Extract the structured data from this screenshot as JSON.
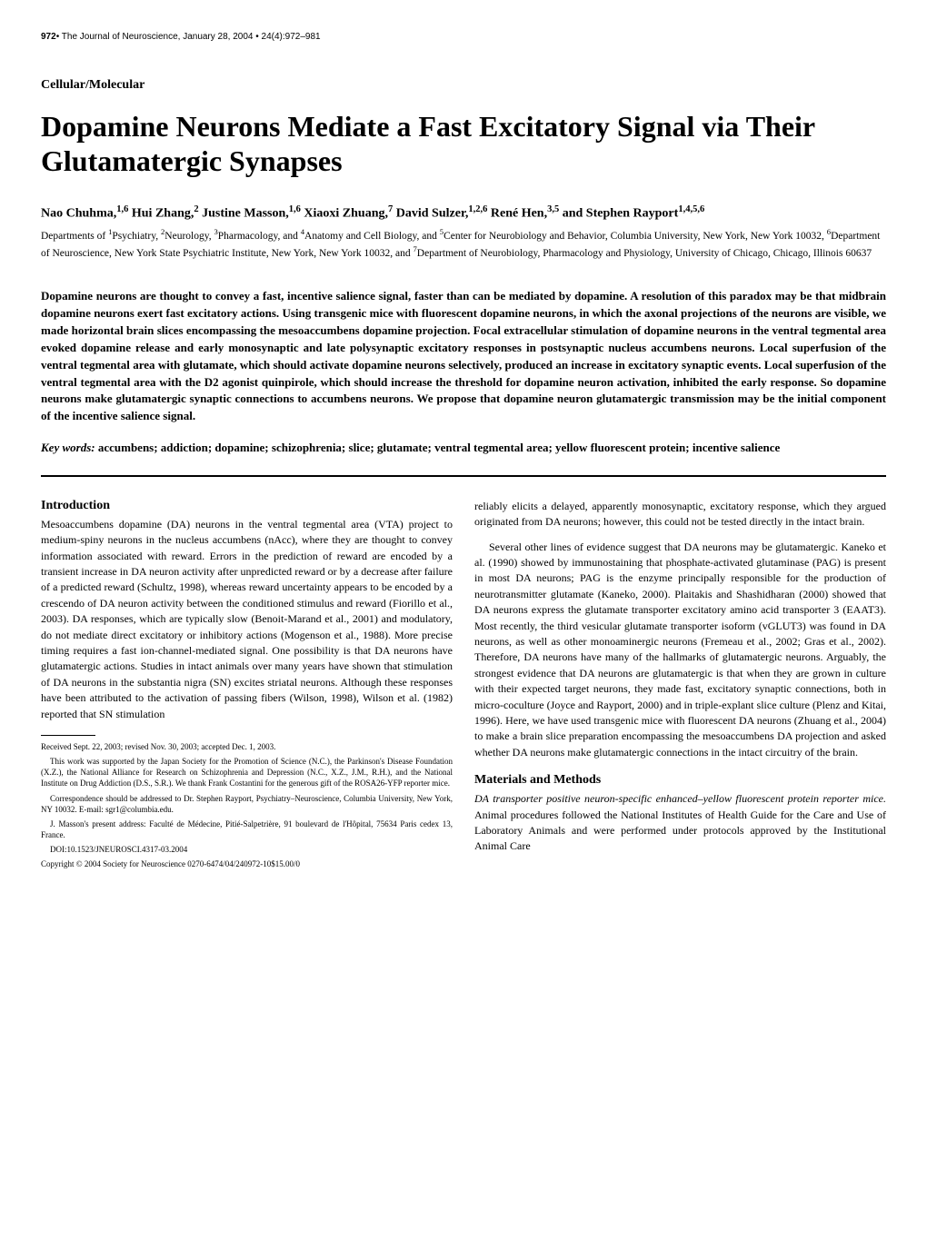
{
  "header": {
    "page_number": "972",
    "journal_info": "• The Journal of Neuroscience, January 28, 2004 • 24(4):972–981"
  },
  "section_label": "Cellular/Molecular",
  "title": "Dopamine Neurons Mediate a Fast Excitatory Signal via Their Glutamatergic Synapses",
  "authors_html": "Nao Chuhma,<sup>1,6</sup> Hui Zhang,<sup>2</sup> Justine Masson,<sup>1,6</sup> Xiaoxi Zhuang,<sup>7</sup> David Sulzer,<sup>1,2,6</sup> René Hen,<sup>3,5</sup> and Stephen Rayport<sup>1,4,5,6</sup>",
  "affiliations_html": "Departments of <sup>1</sup>Psychiatry, <sup>2</sup>Neurology, <sup>3</sup>Pharmacology, and <sup>4</sup>Anatomy and Cell Biology, and <sup>5</sup>Center for Neurobiology and Behavior, Columbia University, New York, New York 10032, <sup>6</sup>Department of Neuroscience, New York State Psychiatric Institute, New York, New York 10032, and <sup>7</sup>Department of Neurobiology, Pharmacology and Physiology, University of Chicago, Chicago, Illinois 60637",
  "abstract": "Dopamine neurons are thought to convey a fast, incentive salience signal, faster than can be mediated by dopamine. A resolution of this paradox may be that midbrain dopamine neurons exert fast excitatory actions. Using transgenic mice with fluorescent dopamine neurons, in which the axonal projections of the neurons are visible, we made horizontal brain slices encompassing the mesoaccumbens dopamine projection. Focal extracellular stimulation of dopamine neurons in the ventral tegmental area evoked dopamine release and early monosynaptic and late polysynaptic excitatory responses in postsynaptic nucleus accumbens neurons. Local superfusion of the ventral tegmental area with glutamate, which should activate dopamine neurons selectively, produced an increase in excitatory synaptic events. Local superfusion of the ventral tegmental area with the D2 agonist quinpirole, which should increase the threshold for dopamine neuron activation, inhibited the early response. So dopamine neurons make glutamatergic synaptic connections to accumbens neurons. We propose that dopamine neuron glutamatergic transmission may be the initial component of the incentive salience signal.",
  "keywords_label": "Key words:",
  "keywords": " accumbens; addiction; dopamine; schizophrenia; slice; glutamate; ventral tegmental area; yellow fluorescent protein; incentive salience",
  "introduction": {
    "heading": "Introduction",
    "p1": "Mesoaccumbens dopamine (DA) neurons in the ventral tegmental area (VTA) project to medium-spiny neurons in the nucleus accumbens (nAcc), where they are thought to convey information associated with reward. Errors in the prediction of reward are encoded by a transient increase in DA neuron activity after unpredicted reward or by a decrease after failure of a predicted reward (Schultz, 1998), whereas reward uncertainty appears to be encoded by a crescendo of DA neuron activity between the conditioned stimulus and reward (Fiorillo et al., 2003). DA responses, which are typically slow (Benoit-Marand et al., 2001) and modulatory, do not mediate direct excitatory or inhibitory actions (Mogenson et al., 1988). More precise timing requires a fast ion-channel-mediated signal. One possibility is that DA neurons have glutamatergic actions. Studies in intact animals over many years have shown that stimulation of DA neurons in the substantia nigra (SN) excites striatal neurons. Although these responses have been attributed to the activation of passing fibers (Wilson, 1998), Wilson et al. (1982) reported that SN stimulation"
  },
  "col2": {
    "p1": "reliably elicits a delayed, apparently monosynaptic, excitatory response, which they argued originated from DA neurons; however, this could not be tested directly in the intact brain.",
    "p2": "Several other lines of evidence suggest that DA neurons may be glutamatergic. Kaneko et al. (1990) showed by immunostaining that phosphate-activated glutaminase (PAG) is present in most DA neurons; PAG is the enzyme principally responsible for the production of neurotransmitter glutamate (Kaneko, 2000). Plaitakis and Shashidharan (2000) showed that DA neurons express the glutamate transporter excitatory amino acid transporter 3 (EAAT3). Most recently, the third vesicular glutamate transporter isoform (vGLUT3) was found in DA neurons, as well as other monoaminergic neurons (Fremeau et al., 2002; Gras et al., 2002). Therefore, DA neurons have many of the hallmarks of glutamatergic neurons. Arguably, the strongest evidence that DA neurons are glutamatergic is that when they are grown in culture with their expected target neurons, they made fast, excitatory synaptic connections, both in micro-coculture (Joyce and Rayport, 2000) and in triple-explant slice culture (Plenz and Kitai, 1996). Here, we have used transgenic mice with fluorescent DA neurons (Zhuang et al., 2004) to make a brain slice preparation encompassing the mesoaccumbens DA projection and asked whether DA neurons make glutamatergic connections in the intact circuitry of the brain."
  },
  "methods": {
    "heading": "Materials and Methods",
    "p1_sub": "DA transporter positive neuron-specific enhanced–yellow fluorescent protein reporter mice.",
    "p1_rest": " Animal procedures followed the National Institutes of Health Guide for the Care and Use of Laboratory Animals and were performed under protocols approved by the Institutional Animal Care"
  },
  "footnotes": {
    "received": "Received Sept. 22, 2003; revised Nov. 30, 2003; accepted Dec. 1, 2003.",
    "funding": "This work was supported by the Japan Society for the Promotion of Science (N.C.), the Parkinson's Disease Foundation (X.Z.), the National Alliance for Research on Schizophrenia and Depression (N.C., X.Z., J.M., R.H.), and the National Institute on Drug Addiction (D.S., S.R.). We thank Frank Costantini for the generous gift of the ROSA26-YFP reporter mice.",
    "correspondence": "Correspondence should be addressed to Dr. Stephen Rayport, Psychiatry–Neuroscience, Columbia University, New York, NY 10032. E-mail: sgr1@columbia.edu.",
    "masson": "J. Masson's present address: Faculté de Médecine, Pitié-Salpetrière, 91 boulevard de l'Hôpital, 75634 Paris cedex 13, France.",
    "doi": "DOI:10.1523/JNEUROSCI.4317-03.2004",
    "copyright": "Copyright © 2004 Society for Neuroscience    0270-6474/04/240972-10$15.00/0"
  }
}
